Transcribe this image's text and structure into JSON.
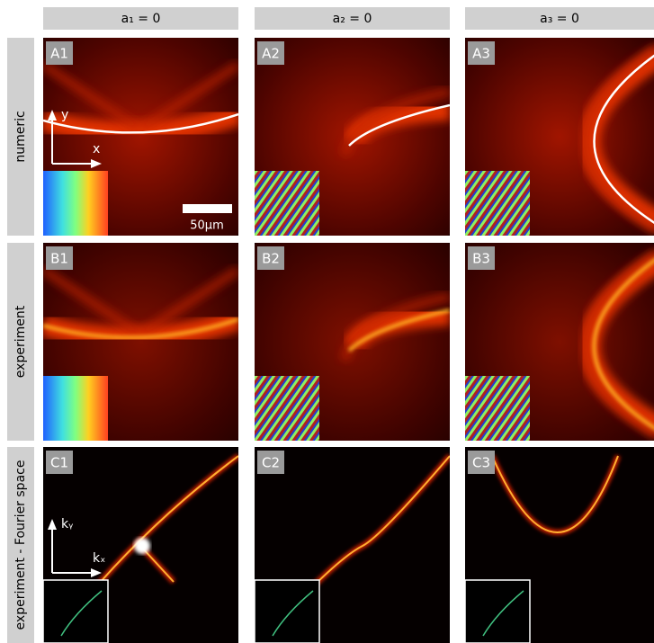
{
  "columns": [
    "a₁ = 0",
    "a₂ = 0",
    "a₃ = 0"
  ],
  "rows": [
    {
      "label": "numeric",
      "panels": [
        "A1",
        "A2",
        "A3"
      ]
    },
    {
      "label": "experiment",
      "panels": [
        "B1",
        "B2",
        "B3"
      ]
    },
    {
      "label": "experiment - Fourier space",
      "panels": [
        "C1",
        "C2",
        "C3"
      ]
    }
  ],
  "scale_bar": "50µm",
  "real_axes": [
    "x",
    "y"
  ],
  "fourier_axes": [
    "kₓ",
    "kᵧ"
  ]
}
